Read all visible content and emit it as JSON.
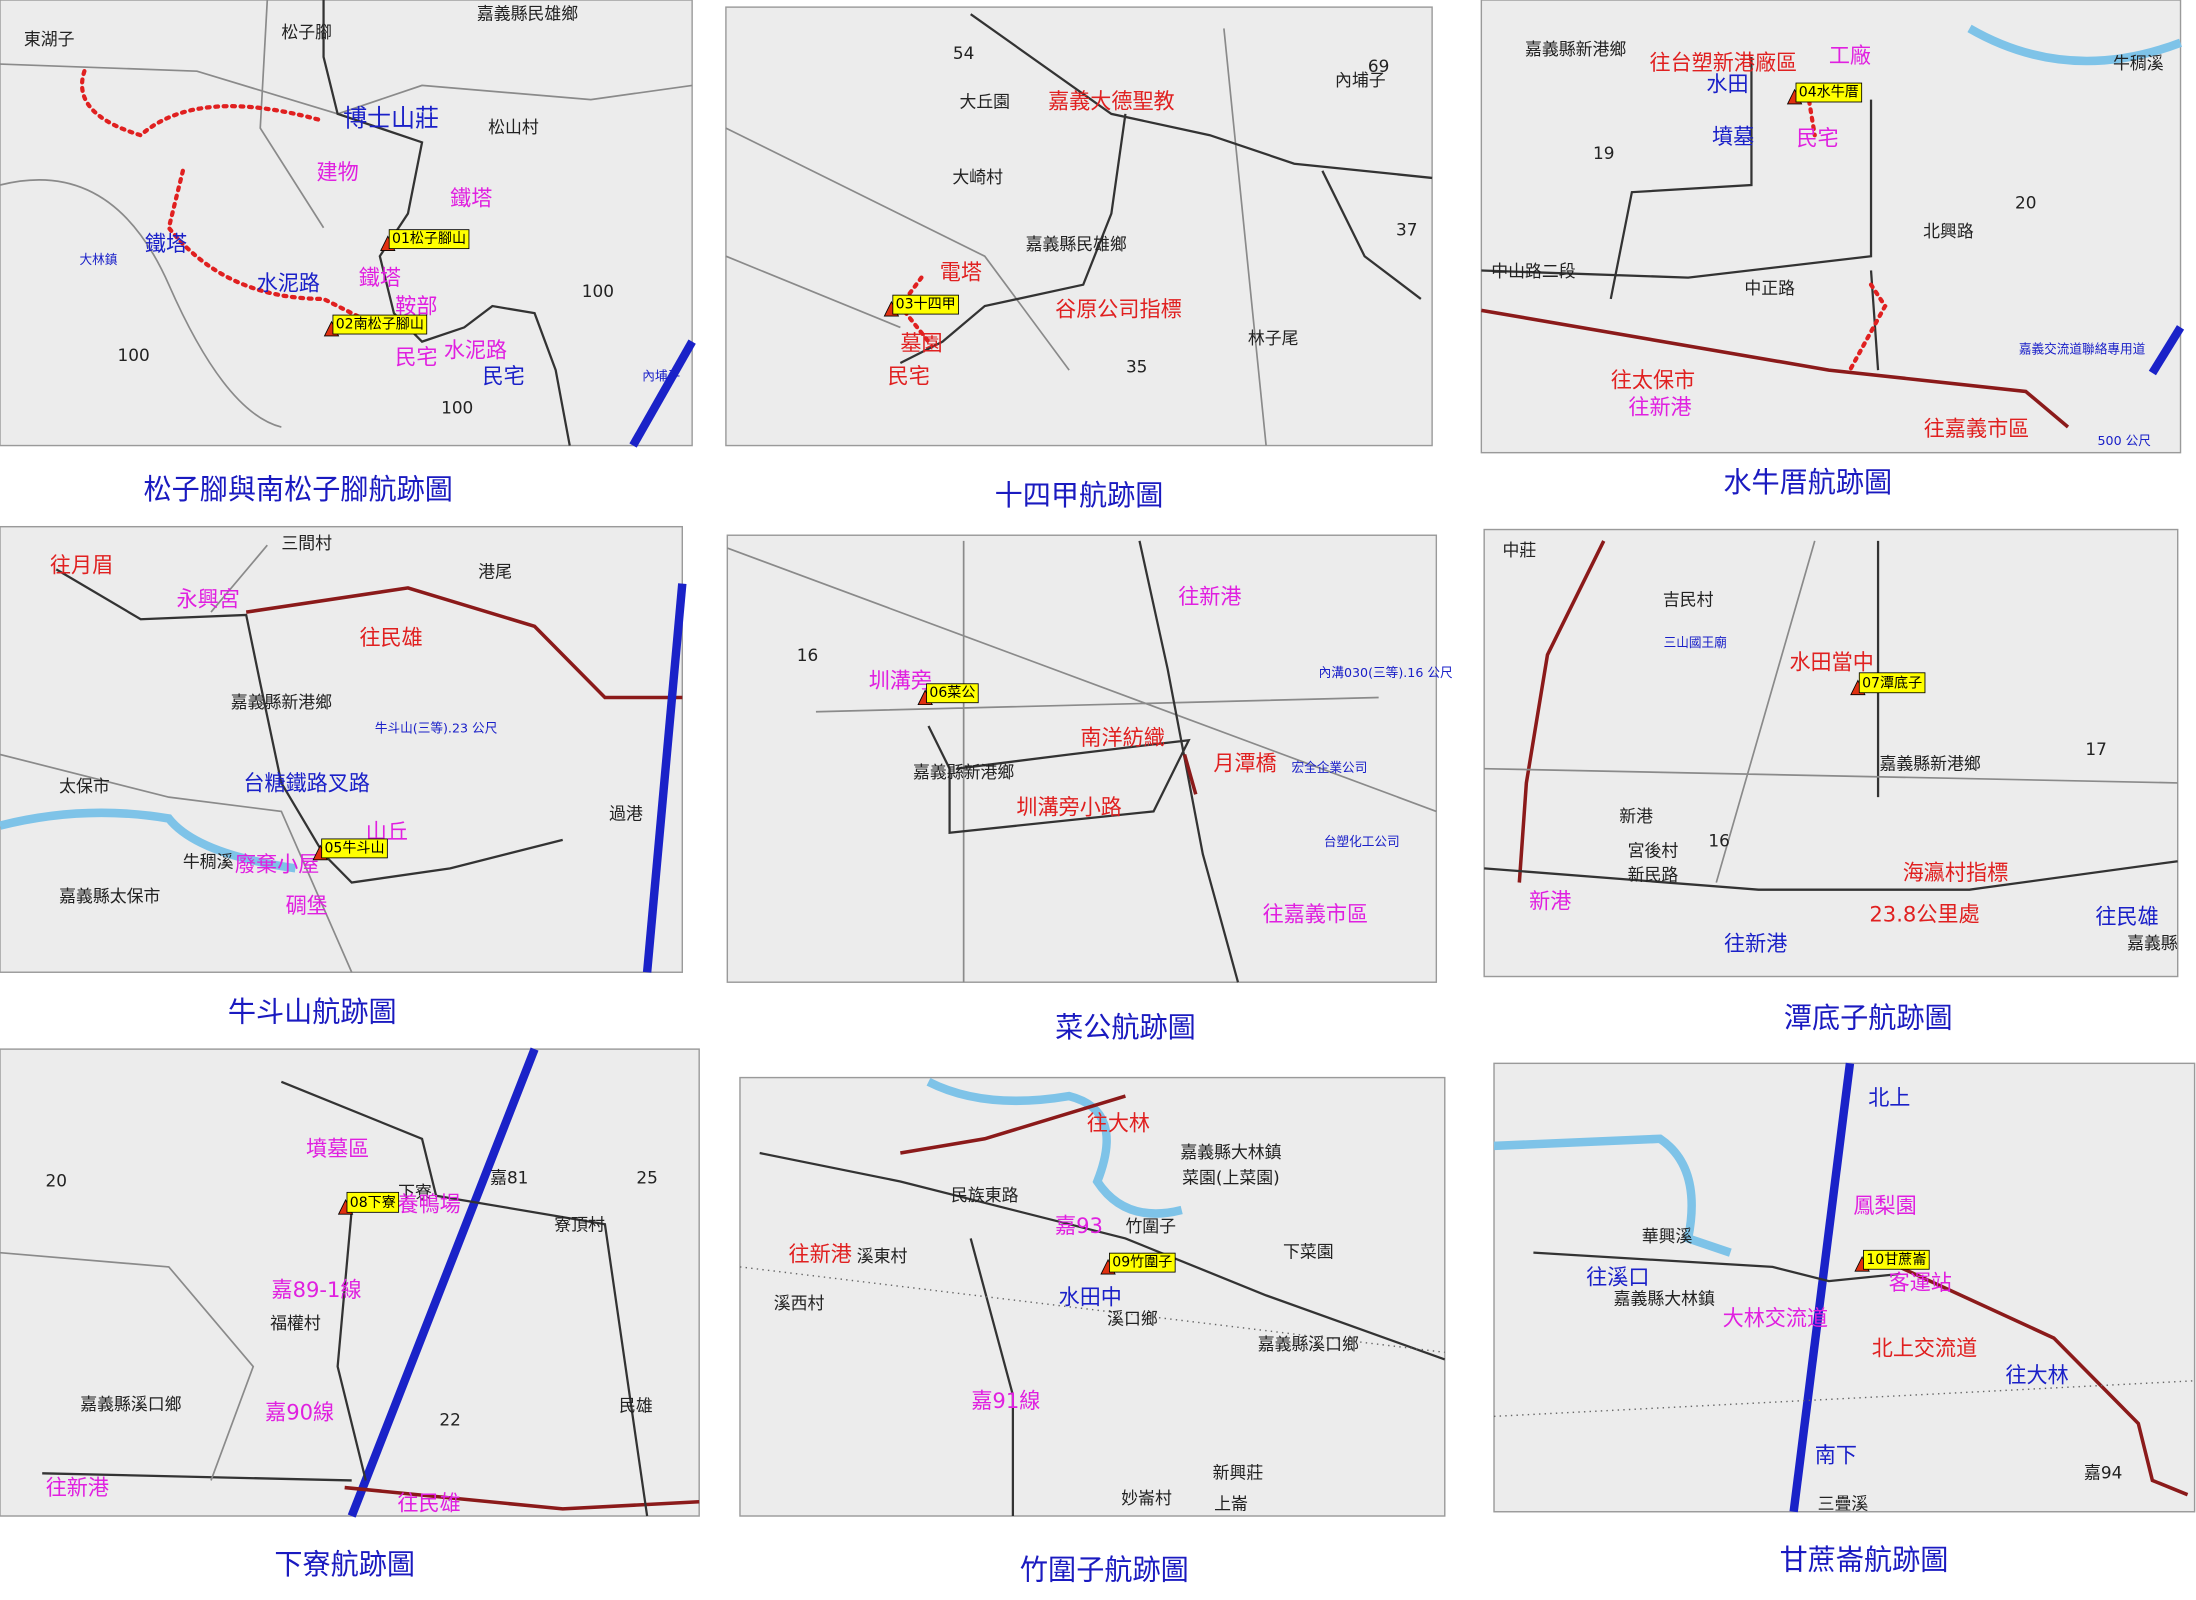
{
  "panels": [
    {
      "caption": "松子腳與南松子腳航跡圖",
      "labels": [
        "東湖子",
        "松子腳",
        "嘉義縣民雄鄉",
        "博士山莊",
        "松山村",
        "建物",
        "鐵塔",
        "鐵塔",
        "水泥路",
        "鐵塔",
        "鞍部",
        "民宅",
        "水泥路",
        "民宅",
        "大林鎮",
        "100",
        "100",
        "100",
        "內埔子",
        "01松子腳山",
        "02南松子腳山"
      ]
    },
    {
      "caption": "十四甲航跡圖",
      "labels": [
        "嘉義大德聖教",
        "大丘園",
        "大崎村",
        "嘉義縣民雄鄉",
        "電塔",
        "谷原公司指標",
        "墓園",
        "民宅",
        "林子尾",
        "內埔子",
        "54",
        "69",
        "37",
        "35",
        "03十四甲"
      ]
    },
    {
      "caption": "水牛厝航跡圖",
      "labels": [
        "嘉義縣新港鄉",
        "往台塑新港廠區",
        "工廠",
        "水田",
        "墳墓",
        "民宅",
        "牛稠溪",
        "中山路二段",
        "北興路",
        "中正路",
        "往太保市",
        "往新港",
        "往嘉義市區",
        "嘉義交流道聯絡專用道",
        "500 公尺",
        "19",
        "20",
        "04水牛厝"
      ]
    },
    {
      "caption": "牛斗山航跡圖",
      "labels": [
        "往月眉",
        "三間村",
        "港尾",
        "永興宮",
        "往民雄",
        "嘉義縣新港鄉",
        "牛斗山(三等).23 公尺",
        "台糖鐵路叉路",
        "太保市",
        "山丘",
        "廢棄小屋",
        "牛稠溪",
        "碉堡",
        "嘉義縣太保市",
        "過港",
        "05牛斗山"
      ]
    },
    {
      "caption": "菜公航跡圖",
      "labels": [
        "往新港",
        "圳溝旁",
        "南洋紡織",
        "月潭橋",
        "嘉義縣新港鄉",
        "圳溝旁小路",
        "往嘉義市區",
        "內溝030(三等).16 公尺",
        "宏全企業公司",
        "台塑化工公司",
        "16",
        "06菜公"
      ]
    },
    {
      "caption": "潭底子航跡圖",
      "labels": [
        "中莊",
        "吉民村",
        "三山國王廟",
        "水田當中",
        "嘉義縣新港鄉",
        "新港",
        "宮後村",
        "新民路",
        "海瀛村指標",
        "23.8公里處",
        "往新港",
        "往民雄",
        "新港",
        "嘉義縣",
        "17",
        "16",
        "07潭底子"
      ]
    },
    {
      "caption": "下寮航跡圖",
      "labels": [
        "墳墓區",
        "下寮",
        "養鴨場",
        "嘉81",
        "寮頂村",
        "嘉89-1線",
        "福權村",
        "嘉義縣溪口鄉",
        "嘉90線",
        "往新港",
        "往民雄",
        "民雄",
        "20",
        "25",
        "22",
        "08下寮"
      ]
    },
    {
      "caption": "竹圍子航跡圖",
      "labels": [
        "往大林",
        "嘉義縣大林鎮",
        "菜園(上菜園)",
        "民族東路",
        "竹圍子",
        "嘉93",
        "往新港",
        "溪東村",
        "下菜園",
        "水田中",
        "溪口鄉",
        "嘉義縣溪口鄉",
        "溪西村",
        "嘉91線",
        "新興莊",
        "上崙",
        "妙崙村",
        "09竹圍子"
      ]
    },
    {
      "caption": "甘蔗崙航跡圖",
      "labels": [
        "北上",
        "華興溪",
        "鳳梨園",
        "往溪口",
        "客運站",
        "嘉義縣大林鎮",
        "大林交流道",
        "北上交流道",
        "往大林",
        "南下",
        "三疊溪",
        "嘉94",
        "10甘蔗崙"
      ]
    }
  ]
}
